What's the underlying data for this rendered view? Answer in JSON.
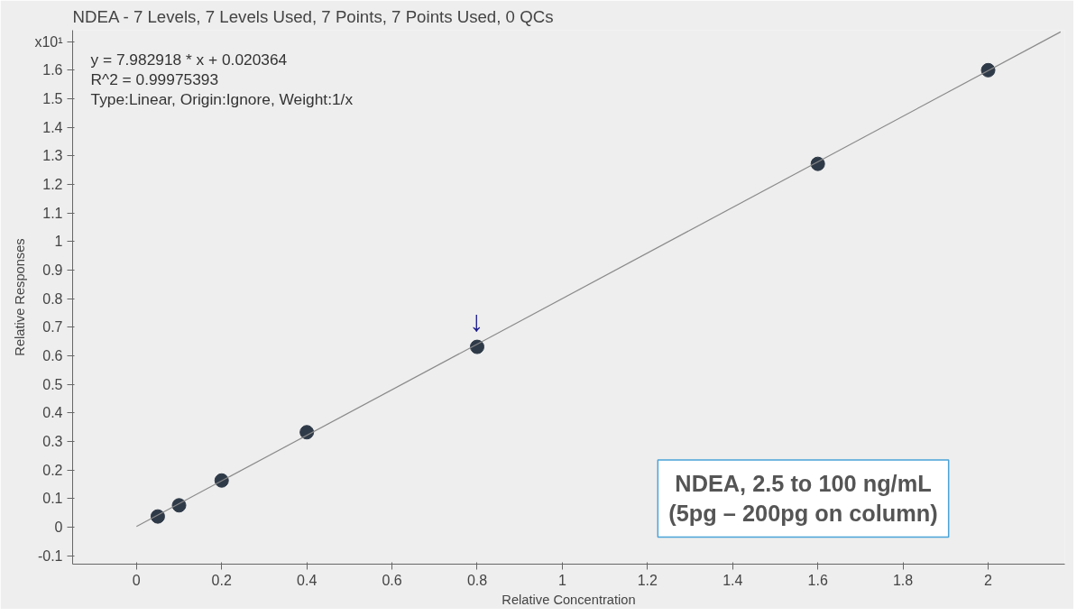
{
  "chart_data": {
    "type": "scatter",
    "title": "NDEA - 7 Levels, 7 Levels Used, 7 Points, 7 Points Used, 0 QCs",
    "xlabel": "Relative Concentration",
    "ylabel": "Relative Responses",
    "x": [
      0.05,
      0.1,
      0.2,
      0.4,
      0.8,
      1.6,
      2.0
    ],
    "series": [
      {
        "color": "#2f3a48",
        "marker": "circle",
        "values": [
          0.037,
          0.076,
          0.163,
          0.332,
          0.631,
          1.272,
          1.6
        ]
      },
      {
        "type": "line",
        "color": "#8a8a8a",
        "x": [
          0,
          2.17
        ],
        "values": [
          0.002,
          1.734
        ]
      }
    ],
    "xlim": [
      -0.15,
      2.18
    ],
    "ylim": [
      -0.13,
      1.74
    ],
    "xticks": [
      0,
      0.2,
      0.4,
      0.6,
      0.8,
      1,
      1.2,
      1.4,
      1.6,
      1.8,
      2
    ],
    "yticks": [
      -0.1,
      0,
      0.1,
      0.2,
      0.3,
      0.4,
      0.5,
      0.6,
      0.7,
      0.8,
      0.9,
      1,
      1.1,
      1.2,
      1.3,
      1.4,
      1.5,
      1.6,
      {
        "value": 1.7,
        "label": "x10¹"
      }
    ],
    "annotations": [
      "y = 7.982918 * x  + 0.020364",
      "R^2 = 0.99975393",
      "Type:Linear, Origin:Ignore, Weight:1/x",
      "↓",
      "NDEA, 2.5 to 100 ng/mL\n(5pg – 200pg on column)"
    ],
    "grid": false
  }
}
